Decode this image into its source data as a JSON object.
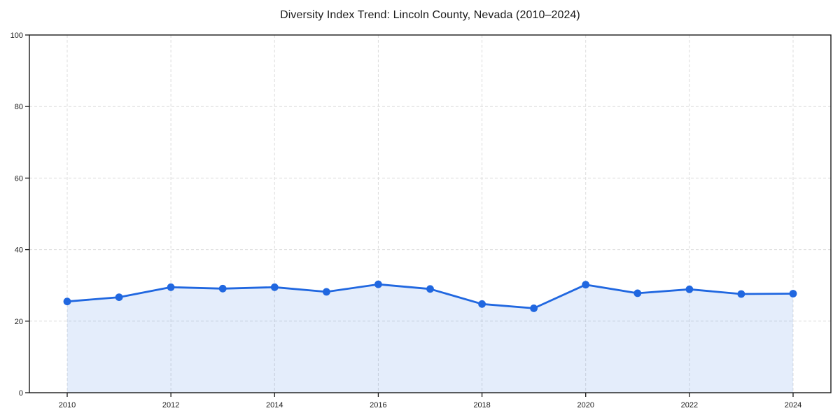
{
  "page": {
    "background": "#ffffff"
  },
  "chart_data": {
    "type": "line",
    "title": "Diversity Index Trend: Lincoln County, Nevada (2010–2024)",
    "x": [
      2010,
      2011,
      2012,
      2013,
      2014,
      2015,
      2016,
      2017,
      2018,
      2019,
      2020,
      2021,
      2022,
      2023,
      2024
    ],
    "series": [
      {
        "name": "Diversity Index",
        "values": [
          25.5,
          26.7,
          29.5,
          29.1,
          29.5,
          28.2,
          30.3,
          29.0,
          24.8,
          23.6,
          30.2,
          27.8,
          28.9,
          27.6,
          27.7
        ]
      }
    ],
    "xticks": [
      2010,
      2012,
      2014,
      2016,
      2018,
      2020,
      2022,
      2024
    ],
    "yticks": [
      0,
      20,
      40,
      60,
      80,
      100
    ],
    "ylim": [
      0,
      100
    ],
    "xlabel": "",
    "ylabel": "",
    "legend_position": "none",
    "grid": "dashed-both-axes",
    "marker": "circle",
    "area_fill": true,
    "colors": {
      "line": "#2067e0",
      "marker": "#2067e0",
      "fill": "rgba(32, 103, 224, 0.12)",
      "grid": "#dcdcdc",
      "axis": "#1a1a1a",
      "text": "#1a1a1a",
      "background": "#ffffff"
    }
  }
}
